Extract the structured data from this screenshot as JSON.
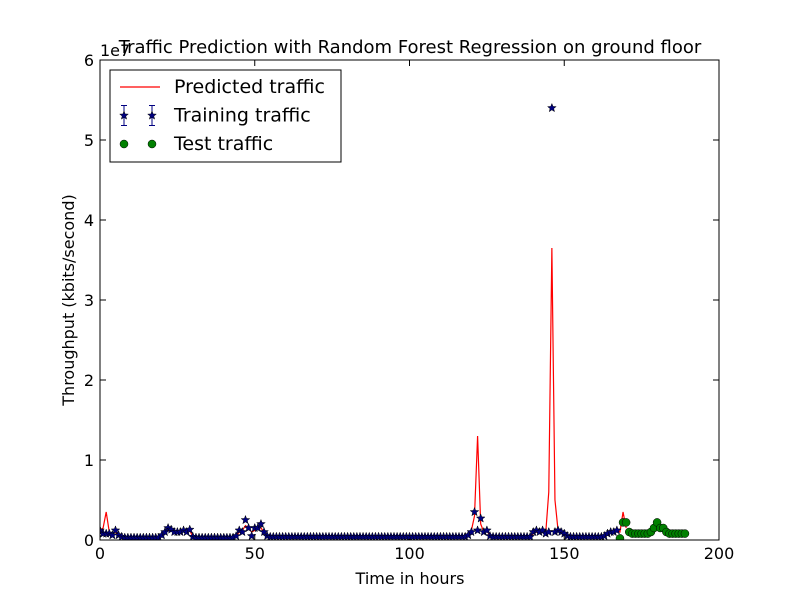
{
  "chart_data": {
    "type": "line",
    "title": "Traffic Prediction with Random Forest Regression on ground floor",
    "xlabel": "Time in hours",
    "ylabel": "Throughput (kbits/second)",
    "y_offset_label": "1e7",
    "xlim": [
      0,
      200
    ],
    "ylim": [
      0,
      6
    ],
    "xticks": [
      0,
      50,
      100,
      150,
      200
    ],
    "yticks": [
      0,
      1,
      2,
      3,
      4,
      5,
      6
    ],
    "legend": "upper left",
    "series": [
      {
        "name": "Predicted traffic",
        "type": "line",
        "color": "#ff0000",
        "x": [
          0,
          1,
          2,
          3,
          4,
          5,
          6,
          7,
          8,
          9,
          10,
          11,
          12,
          13,
          14,
          15,
          16,
          17,
          18,
          19,
          20,
          21,
          22,
          23,
          24,
          25,
          26,
          27,
          28,
          29,
          30,
          31,
          32,
          33,
          34,
          35,
          36,
          37,
          38,
          39,
          40,
          41,
          42,
          43,
          44,
          45,
          46,
          47,
          48,
          49,
          50,
          51,
          52,
          53,
          54,
          55,
          56,
          57,
          58,
          59,
          60,
          61,
          62,
          63,
          64,
          65,
          66,
          67,
          68,
          69,
          70,
          71,
          72,
          73,
          74,
          75,
          76,
          77,
          78,
          79,
          80,
          81,
          82,
          83,
          84,
          85,
          86,
          87,
          88,
          89,
          90,
          91,
          92,
          93,
          94,
          95,
          96,
          97,
          98,
          99,
          100,
          101,
          102,
          103,
          104,
          105,
          106,
          107,
          108,
          109,
          110,
          111,
          112,
          113,
          114,
          115,
          116,
          117,
          118,
          119,
          120,
          121,
          122,
          123,
          124,
          125,
          126,
          127,
          128,
          129,
          130,
          131,
          132,
          133,
          134,
          135,
          136,
          137,
          138,
          139,
          140,
          141,
          142,
          143,
          144,
          145,
          146,
          147,
          148,
          149,
          150,
          151,
          152,
          153,
          154,
          155,
          156,
          157,
          158,
          159,
          160,
          161,
          162,
          163,
          164,
          165,
          166,
          167,
          168,
          169,
          170
        ],
        "values": [
          0.12,
          0.15,
          0.35,
          0.1,
          0.08,
          0.1,
          0.06,
          0.04,
          0.03,
          0.03,
          0.03,
          0.03,
          0.03,
          0.03,
          0.03,
          0.03,
          0.03,
          0.03,
          0.03,
          0.03,
          0.06,
          0.1,
          0.12,
          0.12,
          0.1,
          0.1,
          0.1,
          0.12,
          0.1,
          0.12,
          0.04,
          0.03,
          0.03,
          0.03,
          0.03,
          0.03,
          0.03,
          0.03,
          0.03,
          0.03,
          0.03,
          0.03,
          0.03,
          0.03,
          0.05,
          0.1,
          0.12,
          0.18,
          0.15,
          0.1,
          0.12,
          0.15,
          0.15,
          0.1,
          0.05,
          0.04,
          0.04,
          0.04,
          0.04,
          0.04,
          0.04,
          0.04,
          0.04,
          0.04,
          0.04,
          0.04,
          0.04,
          0.04,
          0.04,
          0.04,
          0.04,
          0.04,
          0.04,
          0.05,
          0.04,
          0.04,
          0.04,
          0.05,
          0.04,
          0.04,
          0.04,
          0.04,
          0.04,
          0.04,
          0.04,
          0.04,
          0.04,
          0.04,
          0.04,
          0.04,
          0.04,
          0.04,
          0.04,
          0.04,
          0.04,
          0.04,
          0.05,
          0.04,
          0.04,
          0.04,
          0.04,
          0.04,
          0.04,
          0.04,
          0.04,
          0.04,
          0.04,
          0.04,
          0.04,
          0.04,
          0.04,
          0.04,
          0.04,
          0.04,
          0.04,
          0.04,
          0.04,
          0.04,
          0.05,
          0.08,
          0.12,
          0.3,
          1.3,
          0.2,
          0.1,
          0.12,
          0.05,
          0.04,
          0.04,
          0.04,
          0.04,
          0.04,
          0.04,
          0.04,
          0.04,
          0.04,
          0.04,
          0.04,
          0.04,
          0.04,
          0.08,
          0.1,
          0.1,
          0.1,
          0.08,
          0.6,
          3.65,
          0.5,
          0.12,
          0.1,
          0.08,
          0.05,
          0.04,
          0.04,
          0.04,
          0.04,
          0.04,
          0.04,
          0.04,
          0.04,
          0.04,
          0.04,
          0.04,
          0.05,
          0.08,
          0.1,
          0.1,
          0.12,
          0.1,
          0.35,
          0.15
        ]
      },
      {
        "name": "Training traffic",
        "type": "scatter",
        "marker": "star",
        "color": "#000080",
        "x": [
          0,
          1,
          2,
          3,
          4,
          5,
          6,
          7,
          8,
          9,
          10,
          11,
          12,
          13,
          14,
          15,
          16,
          17,
          18,
          19,
          20,
          21,
          22,
          23,
          24,
          25,
          26,
          27,
          28,
          29,
          30,
          31,
          32,
          33,
          34,
          35,
          36,
          37,
          38,
          39,
          40,
          41,
          42,
          43,
          44,
          45,
          46,
          47,
          48,
          49,
          50,
          51,
          52,
          53,
          54,
          55,
          56,
          57,
          58,
          59,
          60,
          61,
          62,
          63,
          64,
          65,
          66,
          67,
          68,
          69,
          70,
          71,
          72,
          73,
          74,
          75,
          76,
          77,
          78,
          79,
          80,
          81,
          82,
          83,
          84,
          85,
          86,
          87,
          88,
          89,
          90,
          91,
          92,
          93,
          94,
          95,
          96,
          97,
          98,
          99,
          100,
          101,
          102,
          103,
          104,
          105,
          106,
          107,
          108,
          109,
          110,
          111,
          112,
          113,
          114,
          115,
          116,
          117,
          118,
          119,
          120,
          121,
          122,
          123,
          124,
          125,
          126,
          127,
          128,
          129,
          130,
          131,
          132,
          133,
          134,
          135,
          136,
          137,
          138,
          139,
          140,
          141,
          142,
          143,
          144,
          145,
          146,
          147,
          148,
          149,
          150,
          151,
          152,
          153,
          154,
          155,
          156,
          157,
          158,
          159,
          160,
          161,
          162,
          163,
          164,
          165,
          166,
          167
        ],
        "values": [
          0.12,
          0.08,
          0.08,
          0.08,
          0.06,
          0.12,
          0.06,
          0.04,
          0.03,
          0.03,
          0.03,
          0.03,
          0.03,
          0.03,
          0.03,
          0.03,
          0.03,
          0.03,
          0.03,
          0.03,
          0.06,
          0.1,
          0.15,
          0.13,
          0.1,
          0.1,
          0.1,
          0.12,
          0.1,
          0.13,
          0.04,
          0.03,
          0.03,
          0.03,
          0.03,
          0.03,
          0.03,
          0.03,
          0.03,
          0.03,
          0.03,
          0.03,
          0.03,
          0.03,
          0.05,
          0.12,
          0.1,
          0.25,
          0.15,
          0.05,
          0.15,
          0.15,
          0.2,
          0.1,
          0.05,
          0.04,
          0.04,
          0.04,
          0.04,
          0.04,
          0.04,
          0.04,
          0.04,
          0.04,
          0.04,
          0.04,
          0.04,
          0.04,
          0.04,
          0.04,
          0.04,
          0.04,
          0.04,
          0.04,
          0.04,
          0.04,
          0.04,
          0.04,
          0.04,
          0.04,
          0.04,
          0.04,
          0.04,
          0.04,
          0.04,
          0.04,
          0.04,
          0.04,
          0.04,
          0.04,
          0.04,
          0.04,
          0.04,
          0.04,
          0.04,
          0.04,
          0.04,
          0.04,
          0.04,
          0.04,
          0.04,
          0.04,
          0.04,
          0.04,
          0.04,
          0.04,
          0.04,
          0.04,
          0.04,
          0.04,
          0.04,
          0.04,
          0.04,
          0.04,
          0.04,
          0.04,
          0.04,
          0.04,
          0.04,
          0.06,
          0.1,
          0.35,
          0.12,
          0.27,
          0.1,
          0.12,
          0.05,
          0.04,
          0.04,
          0.04,
          0.04,
          0.04,
          0.04,
          0.04,
          0.04,
          0.04,
          0.04,
          0.04,
          0.04,
          0.04,
          0.1,
          0.12,
          0.1,
          0.12,
          0.08,
          0.1,
          5.4,
          0.1,
          0.12,
          0.1,
          0.08,
          0.05,
          0.04,
          0.04,
          0.04,
          0.04,
          0.04,
          0.04,
          0.04,
          0.04,
          0.04,
          0.04,
          0.04,
          0.05,
          0.08,
          0.1,
          0.1,
          0.12
        ]
      },
      {
        "name": "Test traffic",
        "type": "scatter",
        "marker": "circle",
        "color": "#008000",
        "x": [
          168,
          169,
          170,
          171,
          172,
          173,
          174,
          175,
          176,
          177,
          178,
          179,
          180,
          181,
          182,
          183,
          184,
          185,
          186,
          187,
          188,
          189
        ],
        "values": [
          0.02,
          0.22,
          0.22,
          0.1,
          0.08,
          0.08,
          0.08,
          0.08,
          0.08,
          0.08,
          0.1,
          0.15,
          0.22,
          0.15,
          0.15,
          0.1,
          0.08,
          0.08,
          0.08,
          0.08,
          0.08,
          0.08
        ]
      }
    ]
  }
}
